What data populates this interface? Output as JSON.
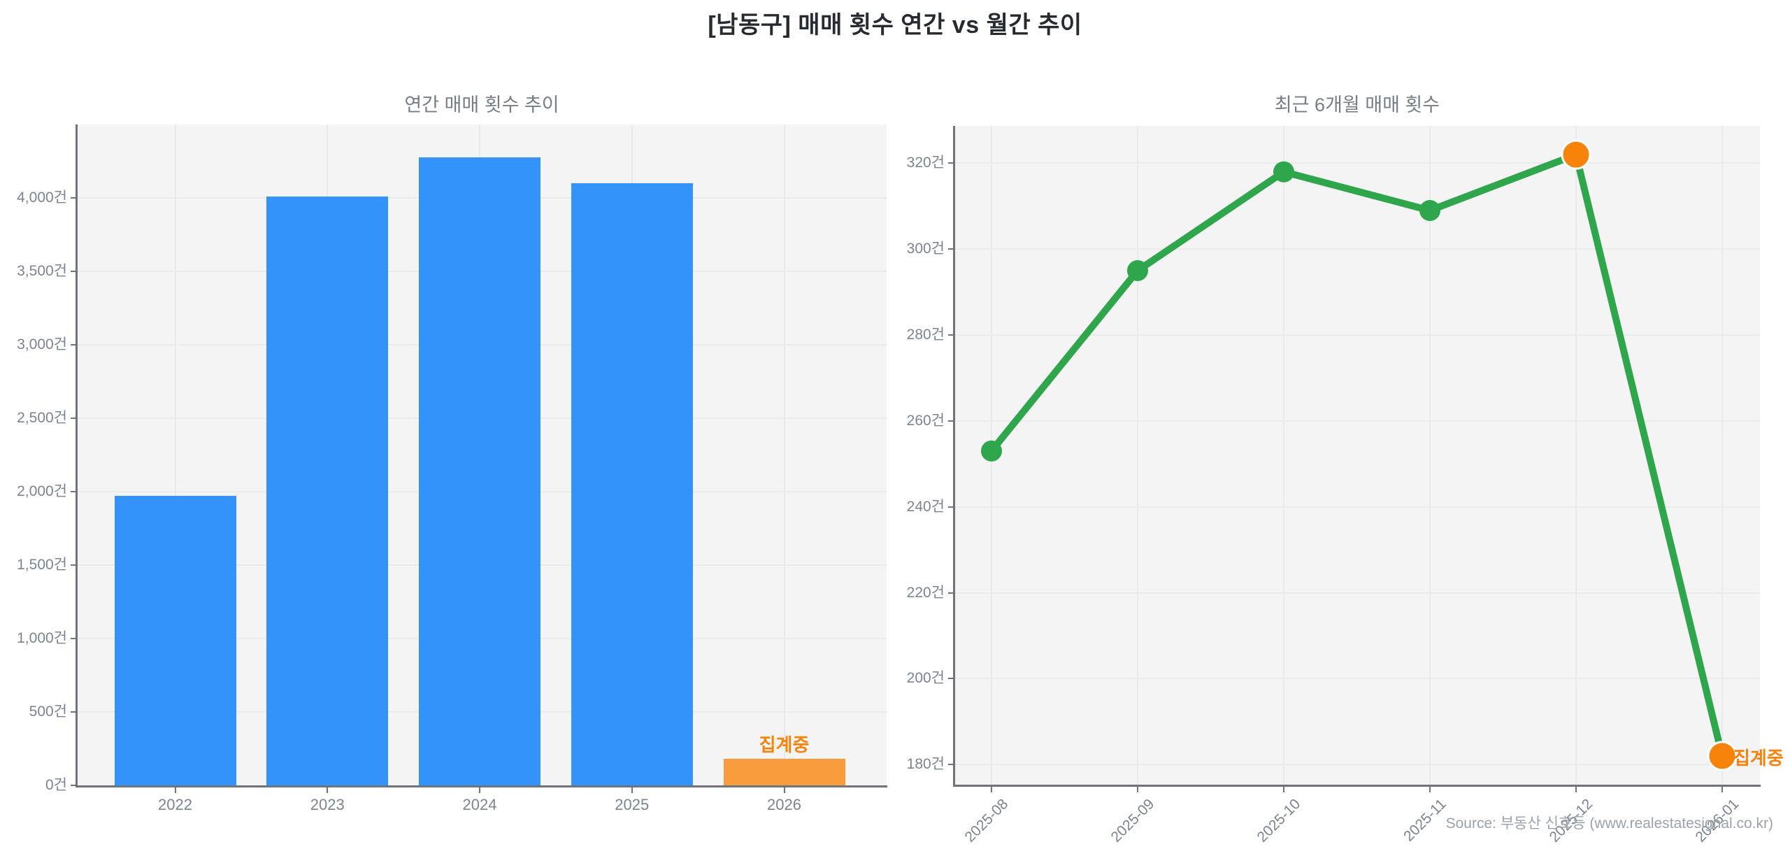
{
  "page": {
    "title": "[남동구] 매매 횟수 연간 vs 월간 추이",
    "source_note": "Source: 부동산 신호등 (www.realestatesignal.co.kr)"
  },
  "colors": {
    "bar_blue": "#3493f8",
    "bar_pending_orange": "#f89c3d",
    "line_green": "#2fa64b",
    "point_highlight_orange": "#f7830b",
    "pending_text_orange": "#f7830b",
    "plot_background": "#f4f4f5",
    "gridline": "#e8eaec",
    "axis_line": "#6e737c",
    "tick_label_text": "#7b8490",
    "chart_title_text": "#757d87",
    "main_title_text": "#262a31",
    "source_text": "#9aa2ad"
  },
  "chart_data": [
    {
      "id": "annual-sales",
      "type": "bar",
      "title": "연간 매매 횟수 추이",
      "categories": [
        "2022",
        "2023",
        "2024",
        "2025",
        "2026"
      ],
      "values": [
        1970,
        4010,
        4275,
        4100,
        180
      ],
      "unit": "건",
      "y_ticks": [
        0,
        500,
        1000,
        1500,
        2000,
        2500,
        3000,
        3500,
        4000
      ],
      "ylim": [
        0,
        4500
      ],
      "grid": true,
      "legend": "none",
      "bar_color": "#3493f8",
      "pending_category": "2026",
      "pending_bar_color": "#f89c3d",
      "pending_label": "집계중"
    },
    {
      "id": "monthly-sales",
      "type": "line",
      "title": "최근 6개월 매매 횟수",
      "categories": [
        "2025-08",
        "2025-09",
        "2025-10",
        "2025-11",
        "2025-12",
        "2026-01"
      ],
      "values": [
        253,
        295,
        318,
        309,
        322,
        182
      ],
      "unit": "건",
      "y_ticks": [
        180,
        200,
        220,
        240,
        260,
        280,
        300,
        320
      ],
      "ylim": [
        175.3,
        328.7
      ],
      "grid": true,
      "legend": "none",
      "line_color": "#2fa64b",
      "highlight_categories": [
        "2025-12",
        "2026-01"
      ],
      "highlight_point_color": "#f7830b",
      "pending_category": "2026-01",
      "pending_label": "집계중"
    }
  ]
}
